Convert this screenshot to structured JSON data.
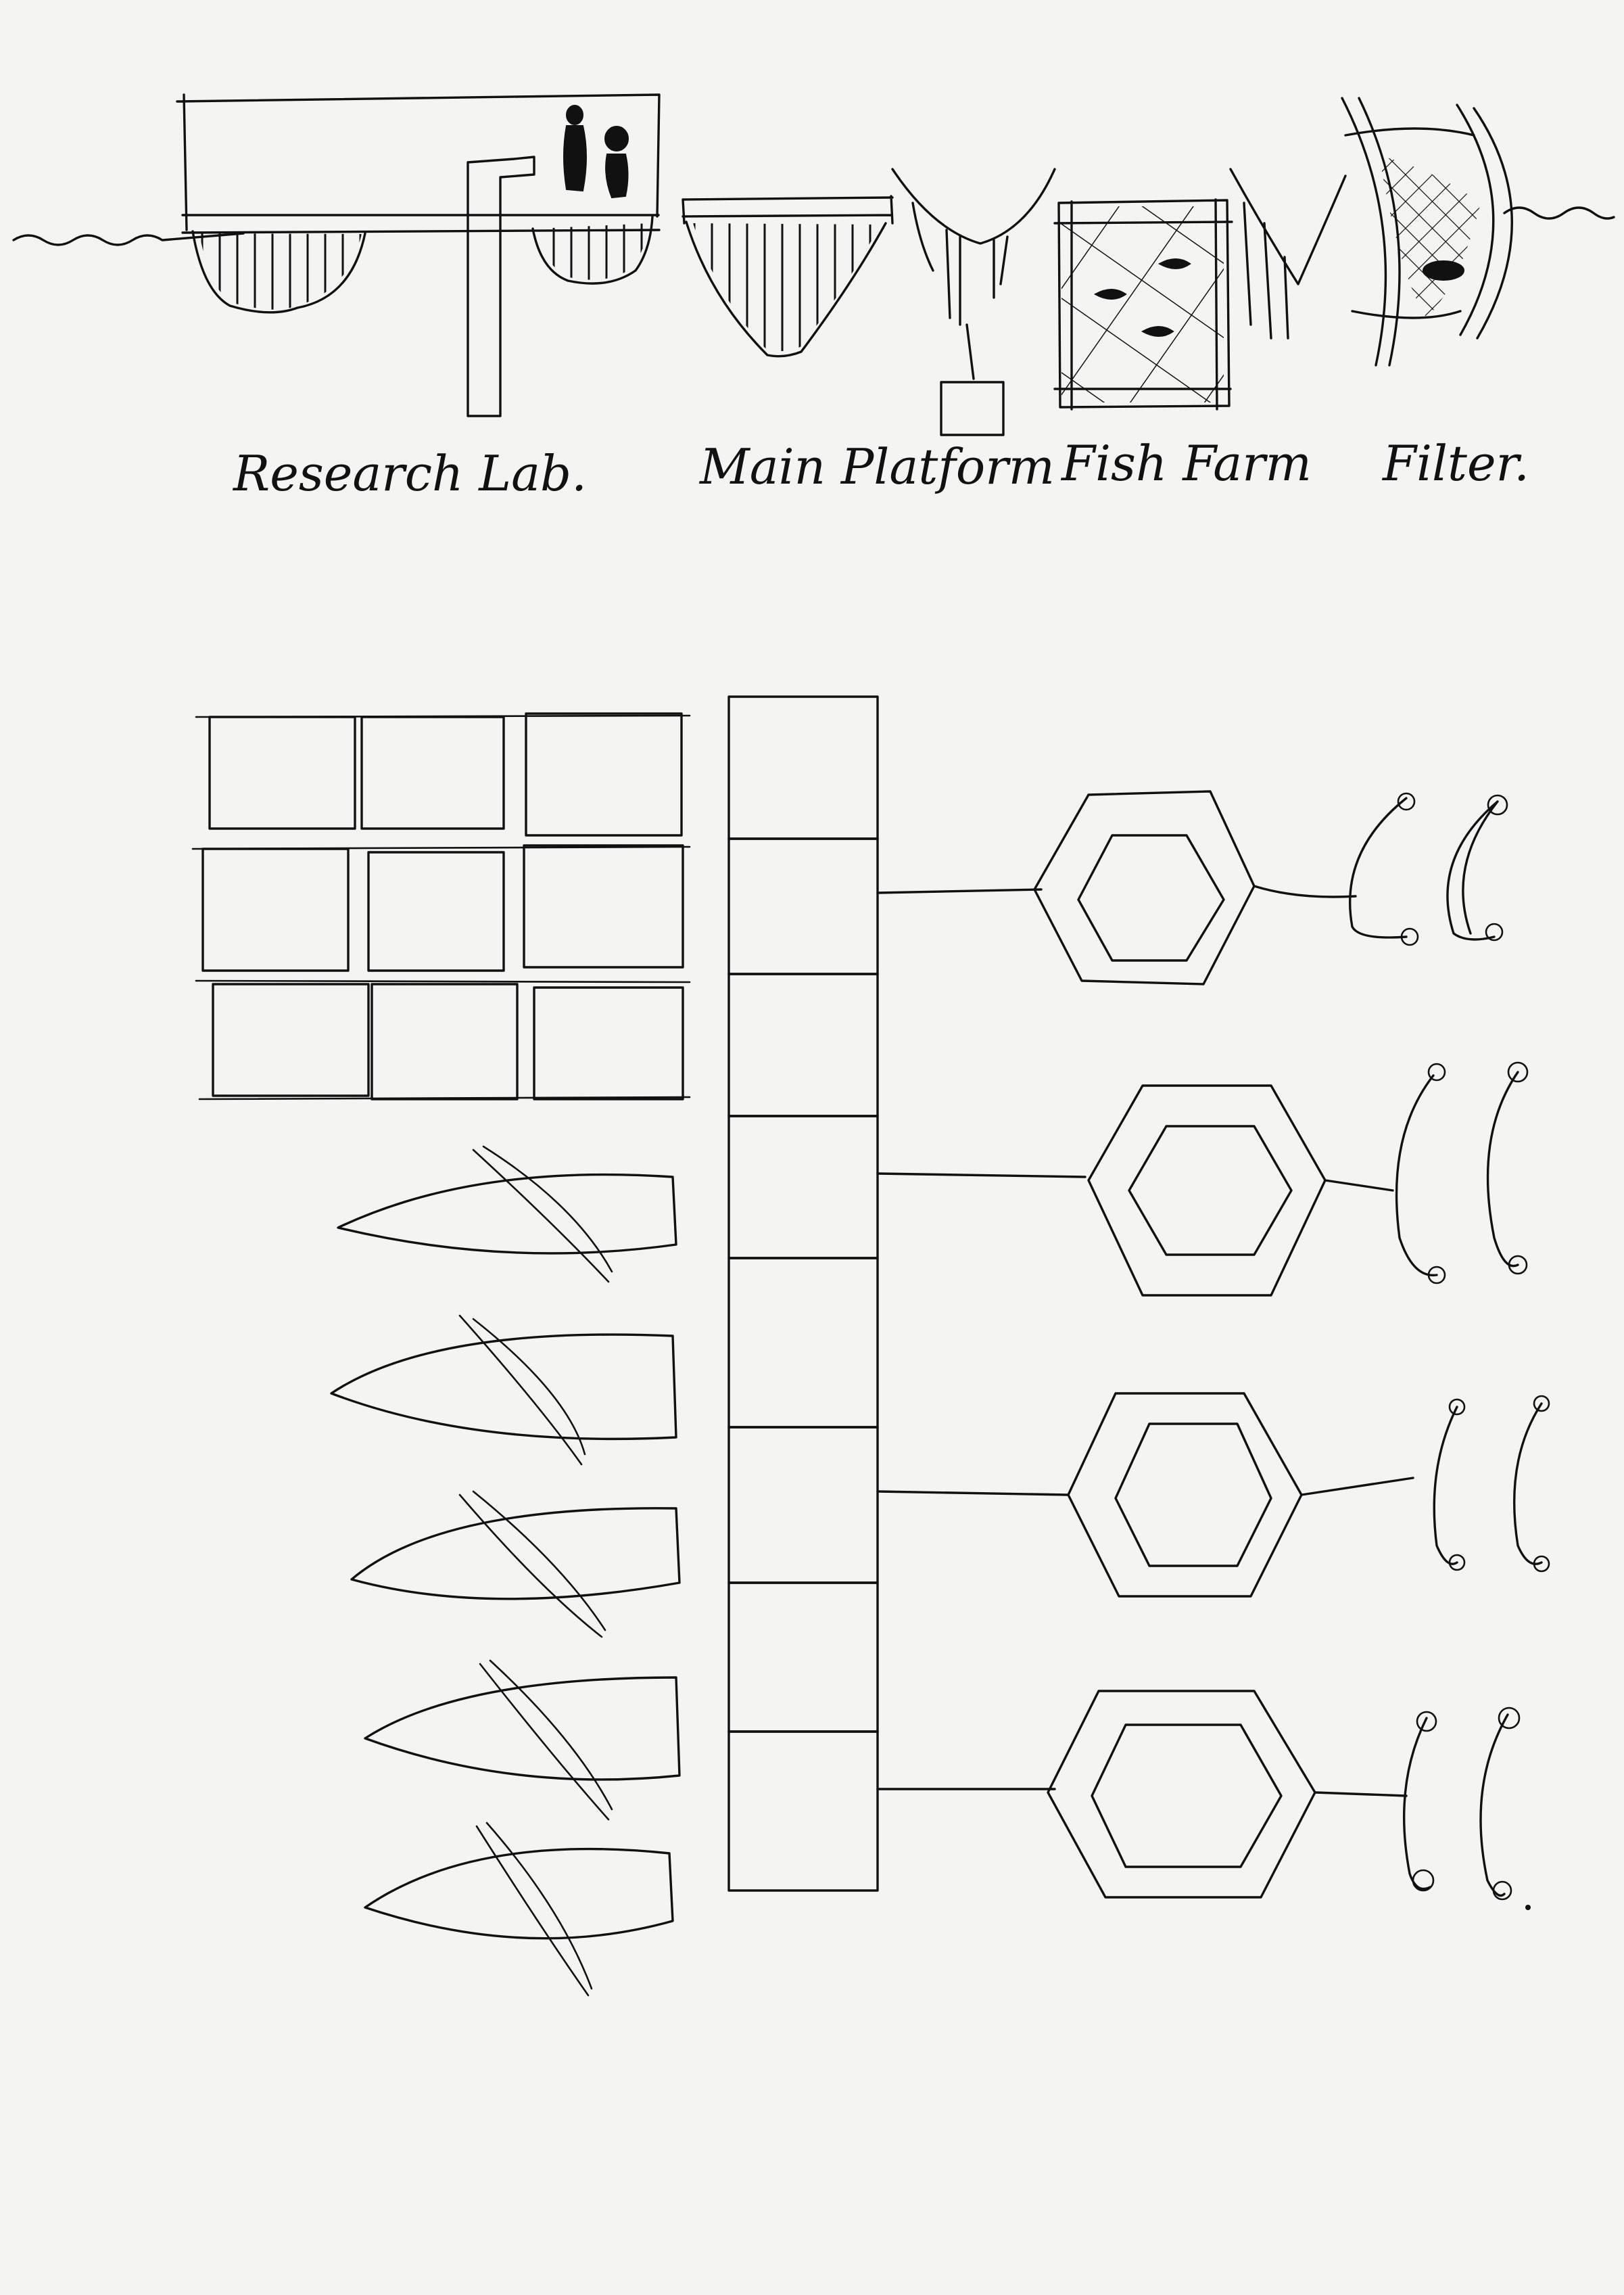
{
  "section_labels": {
    "research_lab": "Research Lab.",
    "main_platform": "Main Platform",
    "fish_farm": "Fish Farm",
    "filter": "Filter."
  },
  "ink_color": "#111111",
  "paper_color": "#f4f4f2"
}
